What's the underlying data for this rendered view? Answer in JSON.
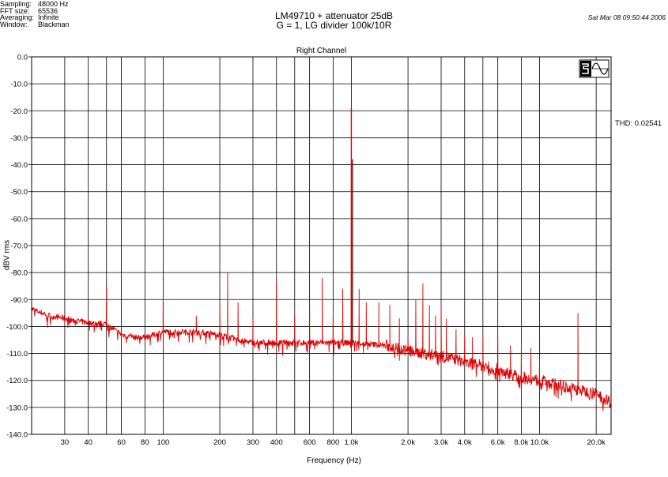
{
  "settings": [
    {
      "key": "Sampling:",
      "value": "48000 Hz"
    },
    {
      "key": "FFT size:",
      "value": "65536"
    },
    {
      "key": "Averaging:",
      "value": "Infinite"
    },
    {
      "key": "Window:",
      "value": "Blackman"
    }
  ],
  "title_line1": "LM49710 + attenuator 25dB",
  "title_line2": "G = 1, LG divider 100k/10R",
  "timestamp": "Sat Mar 08 09:50:44 2006",
  "channel_label": "Right Channel",
  "thd_label": "THD: 0.02541",
  "colors": {
    "trace": "#dd0000",
    "grid": "#000000"
  },
  "logo_icon": "sine-wave-logo-icon",
  "chart_data": {
    "type": "line",
    "title": "Right Channel",
    "xlabel": "Frequency (Hz)",
    "ylabel": "dBV rms",
    "xscale": "log",
    "xlim": [
      20,
      24000
    ],
    "ylim": [
      -140,
      0
    ],
    "grid": true,
    "ytick_values": [
      0,
      -10,
      -20,
      -30,
      -40,
      -50,
      -60,
      -70,
      -80,
      -90,
      -100,
      -110,
      -120,
      -130,
      -140
    ],
    "ytick_labels": [
      "0.0",
      "-10.0",
      "-20.0",
      "-30.0",
      "-40.0",
      "-50.0",
      "-60.0",
      "-70.0",
      "-80.0",
      "-90.0",
      "-100.0",
      "-110.0",
      "-120.0",
      "-130.0",
      "-140.0"
    ],
    "xtick_values": [
      30,
      40,
      60,
      80,
      100,
      200,
      300,
      400,
      600,
      800,
      1000,
      2000,
      3000,
      4000,
      6000,
      8000,
      10000,
      20000
    ],
    "xtick_labels": [
      "30",
      "40",
      "60",
      "80",
      "100",
      "200",
      "300",
      "400",
      "600",
      "800",
      "1.0k",
      "2.0k",
      "3.0k",
      "4.0k",
      "6.0k",
      "8.0k",
      "10.0k",
      "20.0k"
    ],
    "series": [
      {
        "color": "#dd0000",
        "floor": [
          [
            20,
            -93.5
          ],
          [
            25,
            -96
          ],
          [
            30,
            -97
          ],
          [
            35,
            -98
          ],
          [
            40,
            -98.5
          ],
          [
            45,
            -99
          ],
          [
            50,
            -99
          ],
          [
            52,
            -100
          ],
          [
            60,
            -103
          ],
          [
            70,
            -104
          ],
          [
            80,
            -104
          ],
          [
            90,
            -103
          ],
          [
            100,
            -102
          ],
          [
            150,
            -102
          ],
          [
            200,
            -103
          ],
          [
            250,
            -105
          ],
          [
            300,
            -106
          ],
          [
            400,
            -106
          ],
          [
            500,
            -106
          ],
          [
            700,
            -106
          ],
          [
            1000,
            -106
          ],
          [
            1500,
            -107
          ],
          [
            2000,
            -109
          ],
          [
            3000,
            -111
          ],
          [
            4000,
            -113
          ],
          [
            6000,
            -116
          ],
          [
            8000,
            -119
          ],
          [
            10000,
            -120
          ],
          [
            15000,
            -123
          ],
          [
            20000,
            -125
          ],
          [
            24000,
            -128
          ]
        ],
        "peaks": [
          [
            50,
            -85
          ],
          [
            100,
            -89
          ],
          [
            150,
            -96
          ],
          [
            200,
            -91
          ],
          [
            220,
            -80
          ],
          [
            250,
            -91
          ],
          [
            300,
            -97
          ],
          [
            400,
            -83
          ],
          [
            500,
            -96
          ],
          [
            600,
            -91
          ],
          [
            700,
            -82
          ],
          [
            800,
            -96
          ],
          [
            900,
            -86
          ],
          [
            1000,
            -19
          ],
          [
            1100,
            -86
          ],
          [
            1200,
            -91
          ],
          [
            1400,
            -91
          ],
          [
            1600,
            -92
          ],
          [
            1800,
            -97
          ],
          [
            2000,
            -104
          ],
          [
            2200,
            -90
          ],
          [
            2400,
            -84
          ],
          [
            2600,
            -92
          ],
          [
            2800,
            -96
          ],
          [
            3000,
            -91
          ],
          [
            3200,
            -97
          ],
          [
            3600,
            -101
          ],
          [
            4000,
            -103
          ],
          [
            4400,
            -104
          ],
          [
            5000,
            -104
          ],
          [
            6000,
            -104
          ],
          [
            7000,
            -107
          ],
          [
            8000,
            -107
          ],
          [
            9000,
            -108
          ],
          [
            10000,
            -112
          ],
          [
            16000,
            -95
          ]
        ]
      }
    ]
  }
}
